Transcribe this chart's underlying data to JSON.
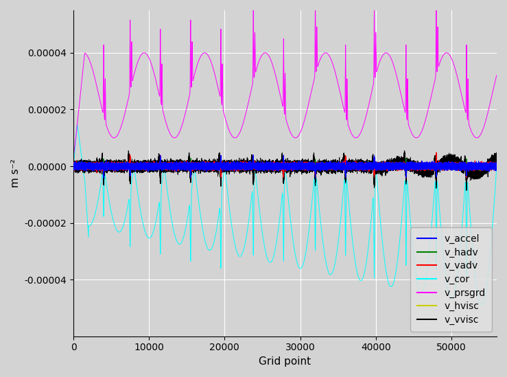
{
  "title": "",
  "xlabel": "Grid point",
  "ylabel": "m s⁻²",
  "xlim": [
    0,
    56000
  ],
  "ylim": [
    -6e-05,
    5.5e-05
  ],
  "yticks": [
    -4e-05,
    -2e-05,
    0.0,
    2e-05,
    4e-05
  ],
  "ytick_labels": [
    "-0.00004",
    "-0.00002",
    "0.00000",
    "0.00002",
    "0.00004"
  ],
  "xticks": [
    0,
    10000,
    20000,
    30000,
    40000,
    50000
  ],
  "bg_color": "#d3d3d3",
  "grid_color": "white",
  "legend_entries": [
    "v_accel",
    "v_hadv",
    "v_vadv",
    "v_cor",
    "v_prsgrd",
    "v_hvisc",
    "v_vvisc"
  ],
  "legend_colors": [
    "blue",
    "green",
    "red",
    "cyan",
    "magenta",
    "#cccc00",
    "black"
  ],
  "n_points": 56000,
  "line_width": 0.7,
  "legend_fontsize": 10,
  "tick_fontsize": 10,
  "label_fontsize": 11
}
